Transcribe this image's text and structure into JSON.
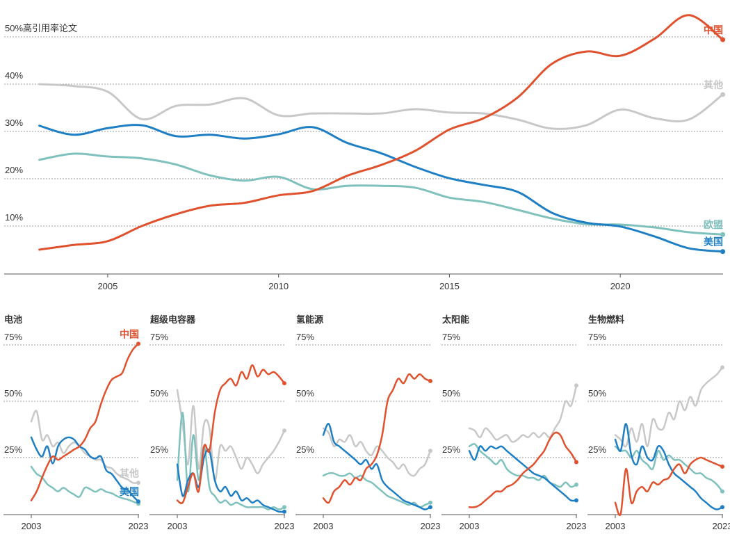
{
  "chart_data": [
    {
      "type": "line",
      "x": [
        2003,
        2004,
        2005,
        2006,
        2007,
        2008,
        2009,
        2010,
        2011,
        2012,
        2013,
        2014,
        2015,
        2016,
        2017,
        2018,
        2019,
        2020,
        2021,
        2022,
        2023
      ],
      "xlim": [
        2003,
        2023
      ],
      "xticks": [
        2005,
        2010,
        2015,
        2020
      ],
      "ylim": [
        0,
        57
      ],
      "yticks": [
        {
          "value": 10,
          "label": "10%"
        },
        {
          "value": 20,
          "label": "20%"
        },
        {
          "value": 30,
          "label": "30%"
        },
        {
          "value": 40,
          "label": "40%"
        },
        {
          "value": 50,
          "label": "50%高引用率论文"
        }
      ],
      "grid": true,
      "series": [
        {
          "name": "其他",
          "color": "#c8c8c8",
          "values": [
            40,
            39.6,
            38.4,
            32.6,
            35.4,
            35.7,
            37,
            33.4,
            33.8,
            33.8,
            33.8,
            34.7,
            34,
            33.8,
            32.5,
            30.6,
            31.3,
            34.6,
            32.8,
            32.5,
            37.8
          ]
        },
        {
          "name": "欧盟",
          "color": "#7fc1bd",
          "values": [
            24,
            25.3,
            24.7,
            24.3,
            23,
            20.7,
            19.6,
            20.4,
            17.8,
            18.5,
            18.5,
            18.1,
            16,
            15.1,
            13.4,
            11.6,
            10.4,
            10.3,
            9.7,
            8.7,
            8.2
          ]
        },
        {
          "name": "美国",
          "color": "#1f7fc4",
          "values": [
            31.2,
            29.3,
            30.7,
            31.3,
            29,
            29.3,
            28.5,
            29.4,
            30.9,
            27.6,
            25.4,
            22.5,
            20.1,
            18.7,
            17.2,
            12.8,
            10.7,
            9.9,
            7.8,
            5.3,
            4.6
          ]
        },
        {
          "name": "中国",
          "color": "#e0512e",
          "values": [
            5,
            6,
            6.8,
            10,
            12.5,
            14.3,
            14.9,
            16.5,
            17.4,
            20.6,
            22.9,
            25.9,
            30.4,
            32.8,
            37.2,
            44.3,
            46.9,
            46,
            49.6,
            54.6,
            49.4
          ]
        }
      ]
    },
    {
      "type": "line",
      "title": "电池",
      "x": [
        2003,
        2004,
        2005,
        2006,
        2007,
        2008,
        2009,
        2010,
        2011,
        2012,
        2013,
        2014,
        2015,
        2016,
        2017,
        2018,
        2019,
        2020,
        2021,
        2022,
        2023
      ],
      "xlim": [
        2003,
        2023
      ],
      "xticks": [
        2003,
        2023
      ],
      "ylim": [
        0,
        82
      ],
      "yticks": [
        {
          "value": 25,
          "label": "25%"
        },
        {
          "value": 50,
          "label": "50%"
        },
        {
          "value": 75,
          "label": "75%"
        }
      ],
      "grid": true,
      "series": [
        {
          "name": "其他",
          "color": "#c8c8c8",
          "values": [
            41,
            45.6,
            33,
            35,
            30,
            31.7,
            27,
            30,
            31.7,
            30,
            27,
            25.5,
            24,
            24,
            21,
            20.3,
            17.8,
            16.3,
            15.3,
            13.8,
            13.8
          ]
        },
        {
          "color": "#7fc1bd",
          "values": [
            21,
            17.8,
            16.3,
            13.2,
            11.6,
            10,
            11.6,
            10,
            8.6,
            7.6,
            11.6,
            11,
            9.8,
            11,
            9.8,
            9.2,
            7.9,
            7,
            6.4,
            5.5,
            4.5
          ]
        },
        {
          "name": "美国",
          "color": "#1f7fc4",
          "values": [
            34,
            28.6,
            25.5,
            30,
            22.4,
            30,
            33,
            34,
            33,
            30,
            28.6,
            25.5,
            24.6,
            25.5,
            19.4,
            17.8,
            14.7,
            11.6,
            10.7,
            7.9,
            5.5
          ]
        },
        {
          "name": "中国",
          "color": "#e0512e",
          "values": [
            6,
            10,
            16,
            21.5,
            25.5,
            24,
            25.5,
            27,
            28.6,
            30,
            33,
            38,
            41,
            48.7,
            55,
            59.5,
            61,
            62.6,
            68.7,
            73,
            75.5
          ]
        }
      ]
    },
    {
      "type": "line",
      "title": "超级电容器",
      "x": [
        2003,
        2004,
        2005,
        2006,
        2007,
        2008,
        2009,
        2010,
        2011,
        2012,
        2013,
        2014,
        2015,
        2016,
        2017,
        2018,
        2019,
        2020,
        2021,
        2022,
        2023
      ],
      "xlim": [
        2003,
        2023
      ],
      "xticks": [
        2003,
        2023
      ],
      "ylim": [
        0,
        82
      ],
      "yticks": [
        {
          "value": 25,
          "label": "25%"
        },
        {
          "value": 50,
          "label": "50%"
        },
        {
          "value": 75,
          "label": "75%"
        }
      ],
      "grid": true,
      "series": [
        {
          "color": "#c8c8c8",
          "values": [
            55,
            40,
            22,
            48,
            20,
            40,
            38,
            15,
            30,
            28,
            30,
            25,
            20,
            25,
            22,
            18,
            22,
            25,
            28,
            32,
            37
          ]
        },
        {
          "color": "#7fc1bd",
          "values": [
            15,
            45,
            10,
            35,
            15,
            30,
            12,
            8,
            5,
            6,
            4,
            5,
            4,
            3,
            3,
            3,
            3,
            2,
            3,
            2,
            3
          ]
        },
        {
          "color": "#1f7fc4",
          "values": [
            22,
            8,
            15,
            18,
            12,
            25,
            28,
            15,
            10,
            12,
            8,
            10,
            6,
            7,
            5,
            6,
            4,
            3,
            2,
            1,
            1
          ]
        },
        {
          "color": "#e0512e",
          "values": [
            6,
            5,
            12,
            18,
            10,
            30,
            28,
            45,
            55,
            58,
            60,
            57,
            63,
            60,
            66,
            61,
            64,
            62,
            63,
            61,
            58
          ]
        }
      ]
    },
    {
      "type": "line",
      "title": "氢能源",
      "x": [
        2003,
        2004,
        2005,
        2006,
        2007,
        2008,
        2009,
        2010,
        2011,
        2012,
        2013,
        2014,
        2015,
        2016,
        2017,
        2018,
        2019,
        2020,
        2021,
        2022,
        2023
      ],
      "xlim": [
        2003,
        2023
      ],
      "xticks": [
        2003,
        2023
      ],
      "ylim": [
        0,
        82
      ],
      "yticks": [
        {
          "value": 25,
          "label": "25%"
        },
        {
          "value": 50,
          "label": "50%"
        },
        {
          "value": 75,
          "label": "75%"
        }
      ],
      "grid": true,
      "series": [
        {
          "color": "#c8c8c8",
          "values": [
            38,
            36,
            30,
            33,
            32,
            35,
            30,
            32,
            28,
            26,
            30,
            28,
            25,
            23,
            20,
            22,
            18,
            17,
            20,
            22,
            28
          ]
        },
        {
          "color": "#7fc1bd",
          "values": [
            17,
            18,
            18,
            17,
            17,
            18,
            16,
            17,
            15,
            14,
            12,
            10,
            8,
            7,
            6,
            5,
            4,
            5,
            3,
            4,
            5
          ]
        },
        {
          "color": "#1f7fc4",
          "values": [
            35,
            40,
            32,
            30,
            28,
            26,
            24,
            22,
            24,
            20,
            22,
            15,
            12,
            10,
            8,
            6,
            5,
            4,
            3,
            2,
            3
          ]
        },
        {
          "color": "#e0512e",
          "values": [
            7,
            5,
            10,
            12,
            15,
            13,
            16,
            15,
            20,
            22,
            26,
            35,
            50,
            55,
            60,
            58,
            62,
            60,
            62,
            60,
            59
          ]
        }
      ]
    },
    {
      "type": "line",
      "title": "太阳能",
      "x": [
        2003,
        2004,
        2005,
        2006,
        2007,
        2008,
        2009,
        2010,
        2011,
        2012,
        2013,
        2014,
        2015,
        2016,
        2017,
        2018,
        2019,
        2020,
        2021,
        2022,
        2023
      ],
      "xlim": [
        2003,
        2023
      ],
      "xticks": [
        2003,
        2023
      ],
      "ylim": [
        0,
        82
      ],
      "yticks": [
        {
          "value": 25,
          "label": "25%"
        },
        {
          "value": 50,
          "label": "50%"
        },
        {
          "value": 75,
          "label": "75%"
        }
      ],
      "grid": true,
      "series": [
        {
          "color": "#c8c8c8",
          "values": [
            38,
            37,
            34,
            38,
            36,
            33,
            34,
            35,
            32,
            33,
            35,
            34,
            36,
            34,
            36,
            34,
            38,
            42,
            50,
            48,
            57
          ]
        },
        {
          "color": "#7fc1bd",
          "values": [
            30,
            31,
            28,
            26,
            24,
            22,
            24,
            20,
            18,
            17,
            17,
            16,
            16,
            15,
            17,
            14,
            13,
            12,
            14,
            12,
            13
          ]
        },
        {
          "color": "#1f7fc4",
          "values": [
            28,
            24,
            30,
            28,
            30,
            29,
            30,
            28,
            26,
            24,
            22,
            20,
            18,
            17,
            16,
            14,
            12,
            10,
            8,
            6,
            6
          ]
        },
        {
          "color": "#e0512e",
          "values": [
            3,
            3,
            4,
            6,
            8,
            10,
            10,
            12,
            13,
            15,
            18,
            20,
            22,
            25,
            28,
            33,
            36,
            35,
            30,
            27,
            23
          ]
        }
      ]
    },
    {
      "type": "line",
      "title": "生物燃料",
      "x": [
        2003,
        2004,
        2005,
        2006,
        2007,
        2008,
        2009,
        2010,
        2011,
        2012,
        2013,
        2014,
        2015,
        2016,
        2017,
        2018,
        2019,
        2020,
        2021,
        2022,
        2023
      ],
      "xlim": [
        2003,
        2023
      ],
      "xticks": [
        2003,
        2023
      ],
      "ylim": [
        0,
        82
      ],
      "yticks": [
        {
          "value": 25,
          "label": "25%"
        },
        {
          "value": 50,
          "label": "50%"
        },
        {
          "value": 75,
          "label": "75%"
        }
      ],
      "grid": true,
      "series": [
        {
          "color": "#c8c8c8",
          "values": [
            35,
            33,
            30,
            38,
            32,
            40,
            30,
            42,
            38,
            38,
            45,
            42,
            50,
            46,
            52,
            48,
            55,
            58,
            60,
            62,
            65
          ]
        },
        {
          "color": "#7fc1bd",
          "values": [
            30,
            28,
            28,
            25,
            28,
            24,
            22,
            20,
            28,
            24,
            26,
            24,
            24,
            22,
            20,
            18,
            18,
            16,
            15,
            13,
            10
          ]
        },
        {
          "color": "#1f7fc4",
          "values": [
            33,
            28,
            40,
            26,
            22,
            30,
            25,
            24,
            30,
            28,
            22,
            18,
            16,
            14,
            12,
            10,
            7,
            5,
            3,
            2,
            3
          ]
        },
        {
          "color": "#e0512e",
          "values": [
            5,
            0,
            20,
            5,
            10,
            12,
            10,
            14,
            13,
            15,
            16,
            20,
            22,
            18,
            22,
            24,
            25,
            24,
            23,
            22,
            21
          ]
        }
      ]
    }
  ]
}
